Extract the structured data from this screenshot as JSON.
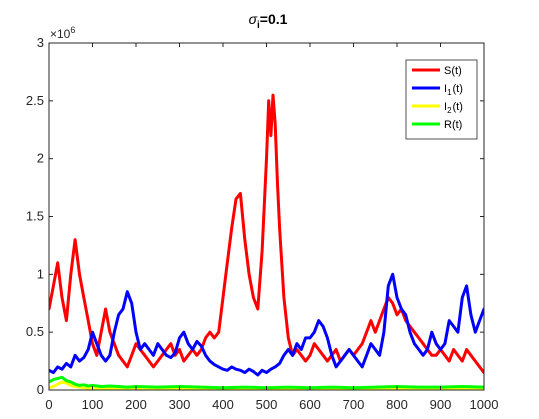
{
  "chart_data": {
    "type": "line",
    "title": "σi=0.1",
    "title_symbol": "σ",
    "title_subscript": "i",
    "title_rest": "=0.1",
    "xlim": [
      0,
      1000
    ],
    "ylim": [
      0,
      3000000
    ],
    "x_ticks": [
      0,
      100,
      200,
      300,
      400,
      500,
      600,
      700,
      800,
      900,
      1000
    ],
    "y_ticks": [
      0,
      0.5,
      1,
      1.5,
      2,
      2.5,
      3
    ],
    "y_exponent_label": "×10",
    "y_exponent_power": "6",
    "grid": false,
    "legend_position": "top-right",
    "series": [
      {
        "name": "S(t)",
        "name_base": "S",
        "name_sub": "",
        "name_suffix": "(t)",
        "color": "#ff0000",
        "x": [
          0,
          10,
          20,
          30,
          40,
          50,
          60,
          70,
          80,
          90,
          100,
          110,
          120,
          130,
          140,
          150,
          160,
          170,
          180,
          190,
          200,
          210,
          220,
          230,
          240,
          250,
          260,
          270,
          280,
          290,
          300,
          310,
          320,
          330,
          340,
          350,
          360,
          370,
          380,
          390,
          400,
          410,
          420,
          430,
          440,
          450,
          460,
          470,
          480,
          490,
          500,
          505,
          510,
          515,
          520,
          525,
          530,
          540,
          550,
          560,
          570,
          580,
          590,
          600,
          610,
          620,
          630,
          640,
          650,
          660,
          670,
          680,
          690,
          700,
          710,
          720,
          730,
          740,
          750,
          760,
          770,
          780,
          790,
          800,
          810,
          820,
          830,
          840,
          850,
          860,
          870,
          880,
          890,
          900,
          910,
          920,
          930,
          940,
          950,
          960,
          970,
          980,
          990,
          1000
        ],
        "y": [
          700000,
          900000,
          1100000,
          800000,
          600000,
          1000000,
          1300000,
          1000000,
          800000,
          600000,
          400000,
          300000,
          500000,
          700000,
          500000,
          400000,
          300000,
          250000,
          200000,
          300000,
          400000,
          350000,
          300000,
          250000,
          200000,
          250000,
          300000,
          350000,
          400000,
          300000,
          350000,
          250000,
          300000,
          350000,
          300000,
          350000,
          450000,
          500000,
          450000,
          500000,
          800000,
          1100000,
          1400000,
          1650000,
          1700000,
          1300000,
          1000000,
          800000,
          700000,
          1200000,
          2000000,
          2500000,
          2200000,
          2550000,
          2300000,
          1800000,
          1400000,
          800000,
          450000,
          300000,
          350000,
          300000,
          250000,
          300000,
          400000,
          350000,
          300000,
          250000,
          300000,
          350000,
          250000,
          300000,
          350000,
          300000,
          350000,
          400000,
          500000,
          600000,
          500000,
          600000,
          700000,
          800000,
          750000,
          650000,
          700000,
          600000,
          550000,
          500000,
          450000,
          400000,
          350000,
          300000,
          300000,
          350000,
          300000,
          250000,
          350000,
          300000,
          250000,
          350000,
          300000,
          250000,
          200000,
          150000
        ]
      },
      {
        "name": "I1(t)",
        "name_base": "I",
        "name_sub": "1",
        "name_suffix": "(t)",
        "color": "#0000ff",
        "x": [
          0,
          10,
          20,
          30,
          40,
          50,
          60,
          70,
          80,
          90,
          100,
          110,
          120,
          130,
          140,
          150,
          160,
          170,
          180,
          190,
          200,
          210,
          220,
          230,
          240,
          250,
          260,
          270,
          280,
          290,
          300,
          310,
          320,
          330,
          340,
          350,
          360,
          370,
          380,
          390,
          400,
          410,
          420,
          430,
          440,
          450,
          460,
          470,
          480,
          490,
          500,
          510,
          520,
          530,
          540,
          550,
          560,
          570,
          580,
          590,
          600,
          610,
          620,
          630,
          640,
          650,
          660,
          670,
          680,
          690,
          700,
          710,
          720,
          730,
          740,
          750,
          760,
          770,
          780,
          790,
          800,
          810,
          820,
          830,
          840,
          850,
          860,
          870,
          880,
          890,
          900,
          910,
          920,
          930,
          940,
          950,
          960,
          970,
          980,
          990,
          1000
        ],
        "y": [
          170000,
          150000,
          200000,
          180000,
          230000,
          200000,
          300000,
          250000,
          280000,
          350000,
          500000,
          400000,
          300000,
          250000,
          300000,
          500000,
          650000,
          700000,
          850000,
          750000,
          500000,
          350000,
          400000,
          350000,
          300000,
          400000,
          350000,
          300000,
          280000,
          320000,
          450000,
          500000,
          400000,
          350000,
          420000,
          380000,
          300000,
          250000,
          220000,
          200000,
          180000,
          170000,
          200000,
          180000,
          170000,
          150000,
          180000,
          160000,
          130000,
          170000,
          150000,
          180000,
          200000,
          230000,
          300000,
          350000,
          300000,
          400000,
          350000,
          450000,
          450000,
          500000,
          600000,
          550000,
          450000,
          300000,
          200000,
          250000,
          300000,
          350000,
          300000,
          250000,
          200000,
          300000,
          400000,
          350000,
          300000,
          500000,
          900000,
          1000000,
          800000,
          700000,
          650000,
          500000,
          400000,
          350000,
          300000,
          350000,
          500000,
          400000,
          350000,
          400000,
          600000,
          550000,
          500000,
          800000,
          900000,
          650000,
          500000,
          600000,
          700000
        ]
      },
      {
        "name": "I2(t)",
        "name_base": "I",
        "name_sub": "2",
        "name_suffix": "(t)",
        "color": "#ffff00",
        "x": [
          0,
          10,
          20,
          30,
          40,
          50,
          60,
          80,
          100,
          150,
          200,
          250,
          300,
          400,
          500,
          600,
          700,
          800,
          900,
          1000
        ],
        "y": [
          20000,
          30000,
          50000,
          70000,
          60000,
          40000,
          30000,
          20000,
          15000,
          10000,
          8000,
          8000,
          7000,
          6000,
          6000,
          7000,
          6000,
          8000,
          7000,
          8000
        ]
      },
      {
        "name": "R(t)",
        "name_base": "R",
        "name_sub": "",
        "name_suffix": "(t)",
        "color": "#00ff00",
        "x": [
          0,
          10,
          20,
          30,
          40,
          50,
          60,
          70,
          80,
          90,
          100,
          120,
          140,
          160,
          180,
          200,
          250,
          300,
          350,
          400,
          450,
          500,
          550,
          600,
          650,
          700,
          750,
          800,
          850,
          900,
          950,
          1000
        ],
        "y": [
          70000,
          90000,
          100000,
          110000,
          80000,
          70000,
          50000,
          40000,
          45000,
          35000,
          40000,
          30000,
          35000,
          30000,
          25000,
          30000,
          25000,
          30000,
          25000,
          20000,
          25000,
          20000,
          25000,
          20000,
          25000,
          20000,
          25000,
          30000,
          25000,
          25000,
          30000,
          25000
        ]
      }
    ]
  }
}
